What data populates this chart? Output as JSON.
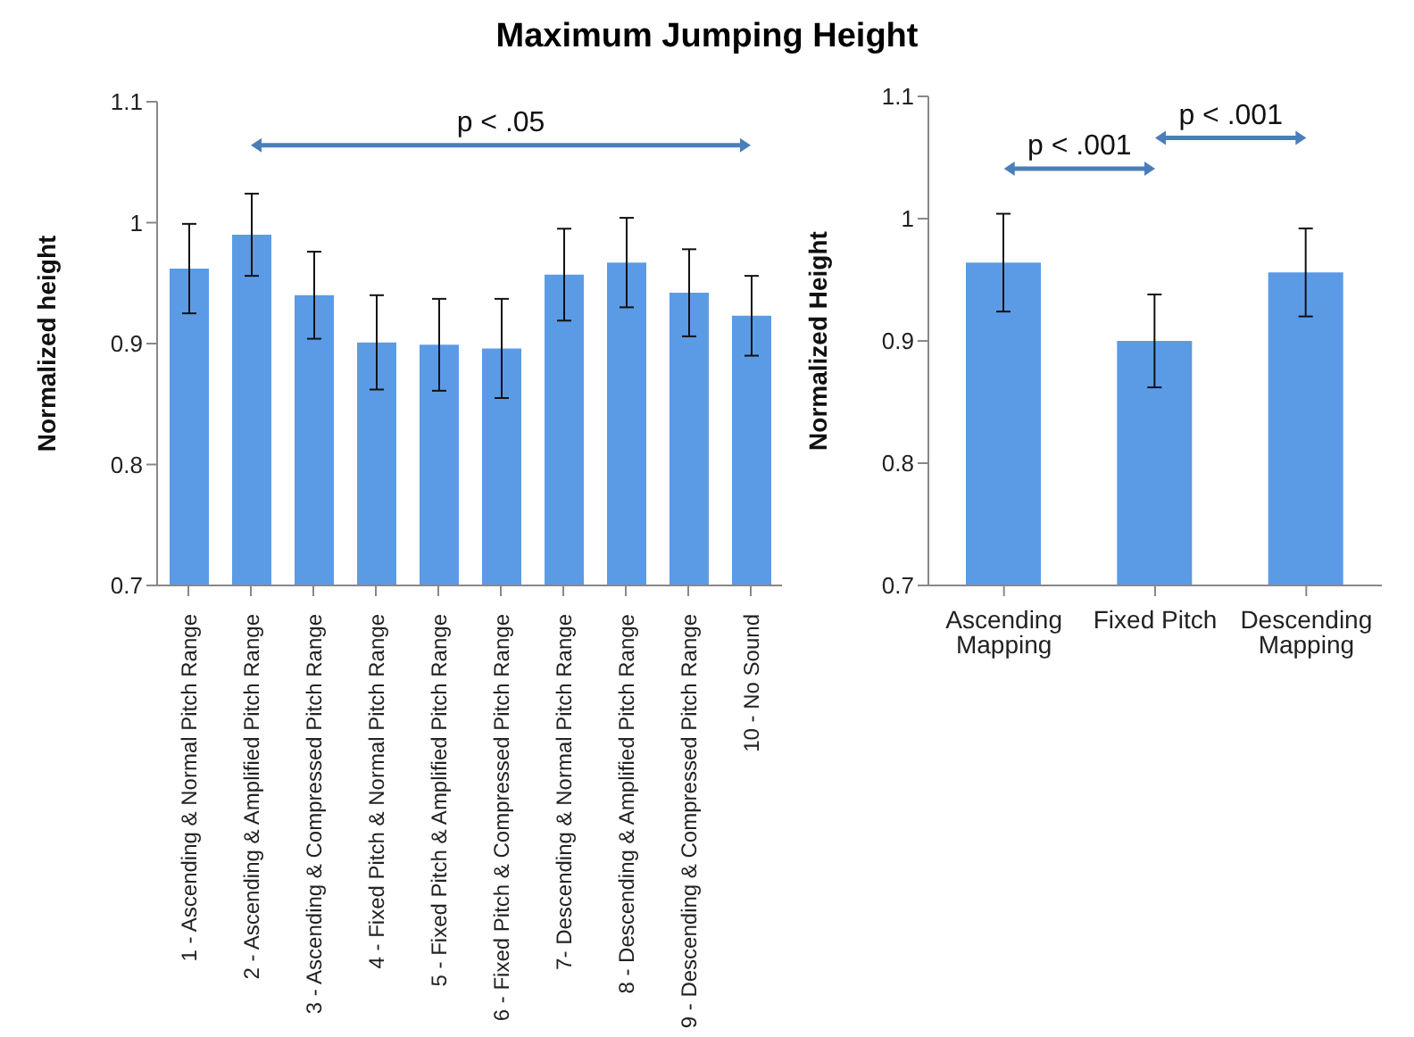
{
  "chart_data": [
    {
      "type": "bar",
      "title": "Maximum Jumping Height",
      "ylabel": "Normalized height",
      "categories": [
        "1 - Ascending & Normal Pitch Range",
        "2 - Ascending & Amplified Pitch Range",
        "3 - Ascending & Compressed Pitch Range",
        "4 - Fixed Pitch & Normal Pitch Range",
        "5 - Fixed Pitch & Amplified Pitch Range",
        "6 - Fixed Pitch & Compressed Pitch Range",
        "7- Descending & Normal Pitch Range",
        "8 - Descending & Amplified Pitch Range",
        "9 - Descending & Compressed Pitch Range",
        "10 - No Sound"
      ],
      "values": [
        0.962,
        0.99,
        0.94,
        0.901,
        0.899,
        0.896,
        0.957,
        0.967,
        0.942,
        0.923
      ],
      "errors": [
        0.037,
        0.034,
        0.036,
        0.039,
        0.038,
        0.041,
        0.038,
        0.037,
        0.036,
        0.033
      ],
      "color": "#5b9be6",
      "ylim": [
        0.7,
        1.1
      ],
      "yticks": [
        0.7,
        0.8,
        0.9,
        1,
        1.1
      ],
      "grid": false,
      "legend": false,
      "annotations": [
        "p < .05"
      ]
    },
    {
      "type": "bar",
      "ylabel": "Normalized Height",
      "categories": [
        "Ascending Mapping",
        "Fixed Pitch",
        "Descending Mapping"
      ],
      "values": [
        0.964,
        0.9,
        0.956
      ],
      "errors": [
        0.04,
        0.038,
        0.036
      ],
      "color": "#5b9be6",
      "ylim": [
        0.7,
        1.1
      ],
      "yticks": [
        0.7,
        0.8,
        0.9,
        1,
        1.1
      ],
      "grid": false,
      "legend": false,
      "annotations": [
        "p < .001",
        "p < .001"
      ]
    }
  ]
}
